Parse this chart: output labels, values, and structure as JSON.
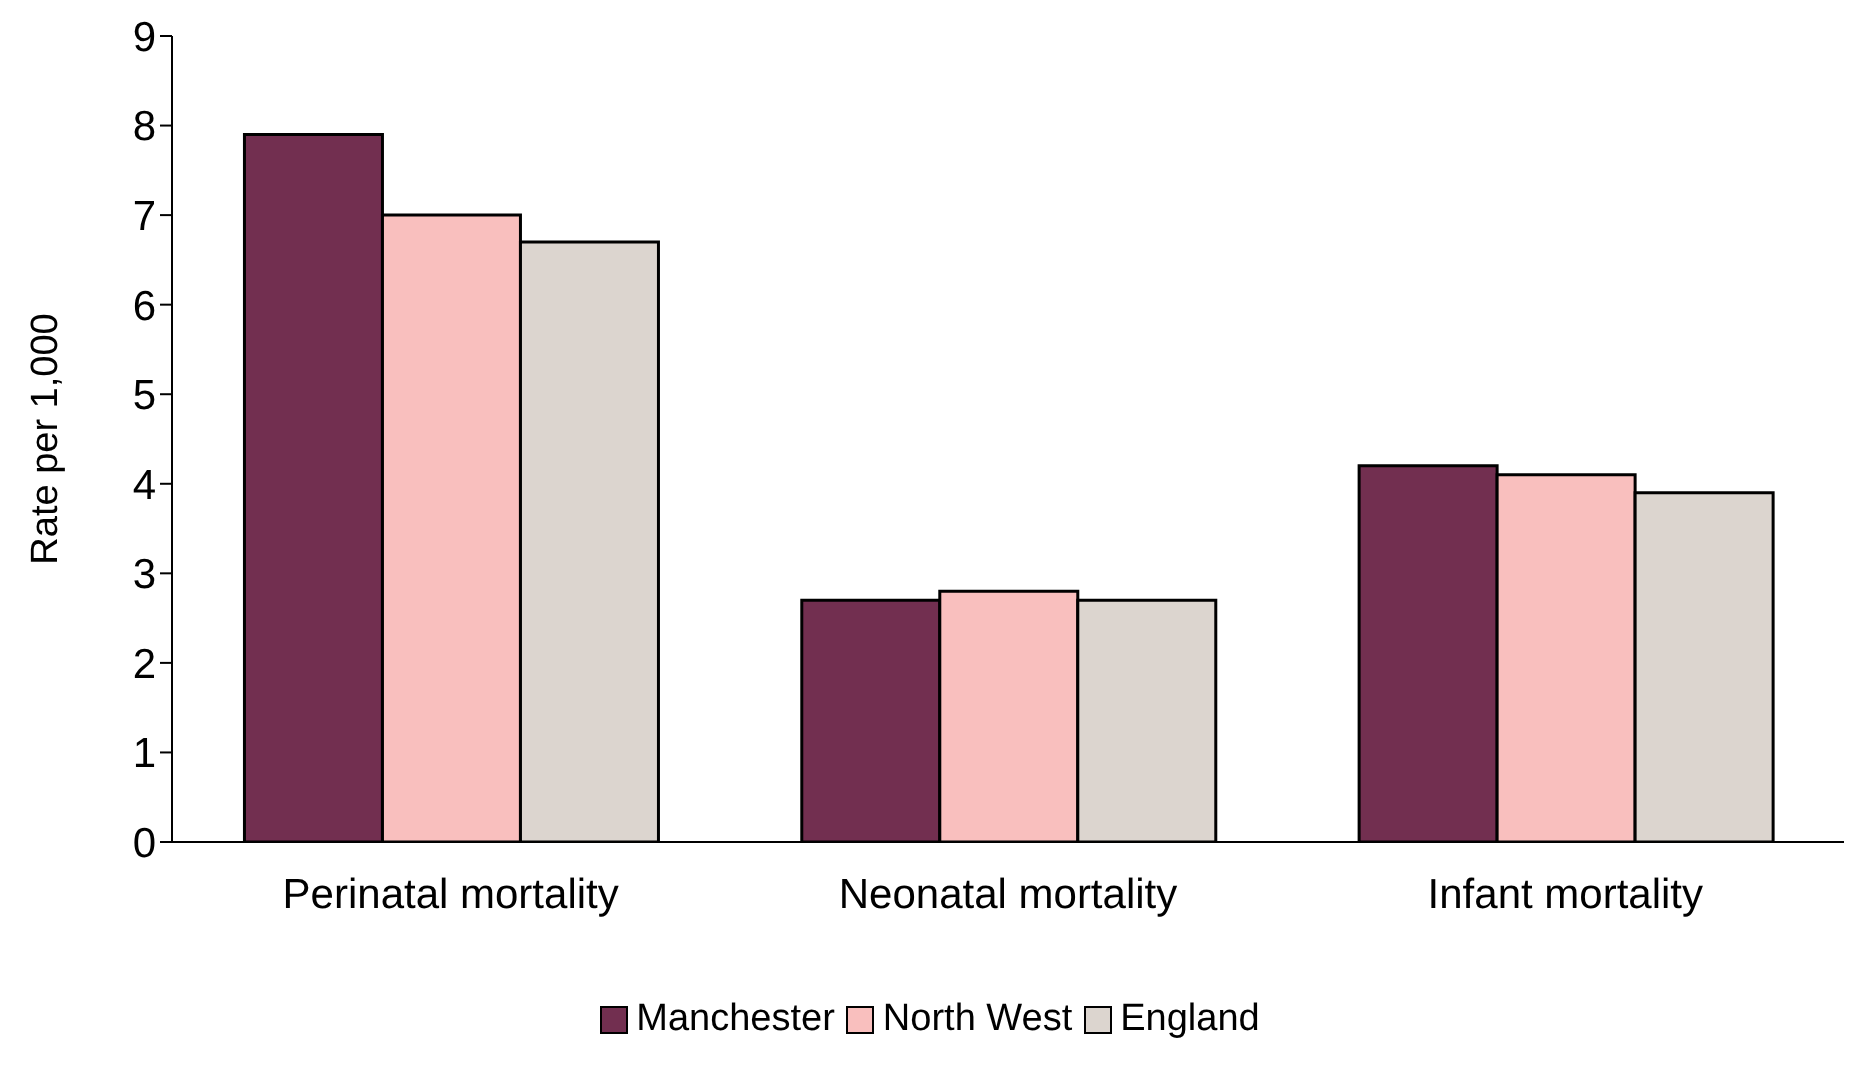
{
  "chart_data": {
    "type": "bar",
    "ylabel": "Rate per 1,000",
    "categories": [
      "Perinatal mortality",
      "Neonatal mortality",
      "Infant mortality"
    ],
    "series": [
      {
        "name": "Manchester",
        "color": "#722f50",
        "values": [
          7.9,
          2.7,
          4.2
        ]
      },
      {
        "name": "North West",
        "color": "#f9bfbe",
        "values": [
          7.0,
          2.8,
          4.1
        ]
      },
      {
        "name": "England",
        "color": "#dcd5cf",
        "values": [
          6.7,
          2.7,
          3.9
        ]
      }
    ],
    "ylim": [
      0,
      9
    ],
    "yticks": [
      0,
      1,
      2,
      3,
      4,
      5,
      6,
      7,
      8,
      9
    ],
    "grid": false,
    "legend": "bottom"
  }
}
